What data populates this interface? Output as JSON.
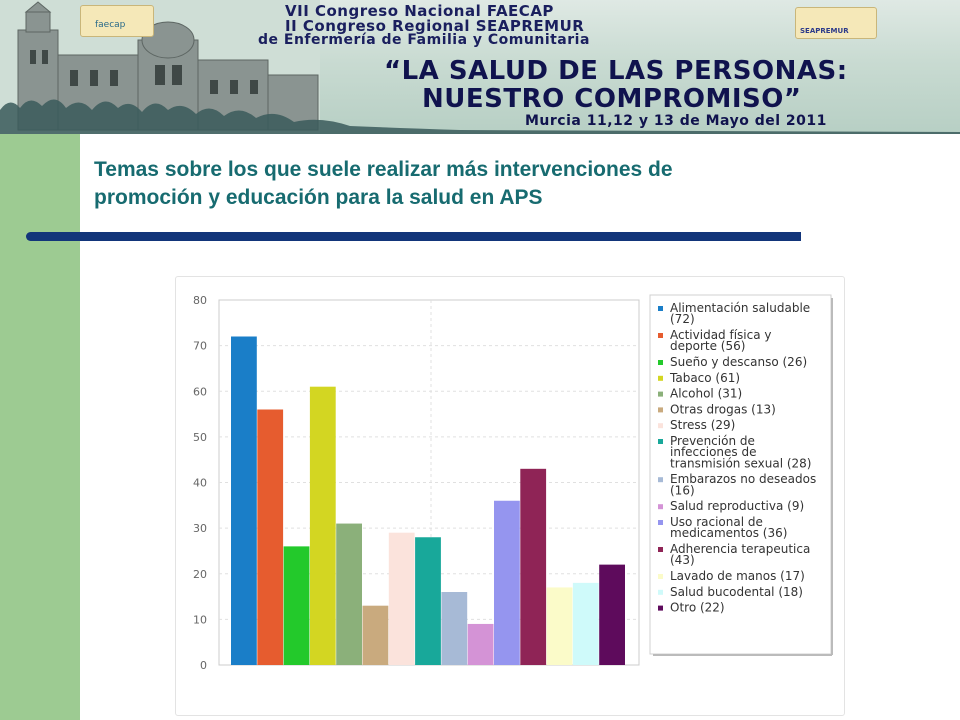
{
  "header": {
    "line1": "VII Congreso Nacional FAECAP",
    "line2": "II Congreso Regional SEAPREMUR",
    "line3": "de Enfermería de Familia y Comunitaria",
    "slogan1": "“LA SALUD DE LAS PERSONAS:",
    "slogan2": "NUESTRO COMPROMISO”",
    "dates": "Murcia 11,12 y 13 de Mayo del 2011",
    "logo_left": "faecap",
    "logo_right": "SEAPREMUR"
  },
  "slide": {
    "title_line1": "Temas sobre los que suele realizar más intervenciones de",
    "title_line2": "promoción y educación para la salud en APS"
  },
  "chart_data": {
    "type": "bar",
    "title": "",
    "xlabel": "",
    "ylabel": "",
    "ylim": [
      0,
      80
    ],
    "yticks": [
      "0",
      "10",
      "20",
      "30",
      "40",
      "50",
      "60",
      "70",
      "80"
    ],
    "grid": true,
    "legend_position": "right",
    "series": [
      {
        "name": "Alimentación saludable",
        "value": 72,
        "color": "#1a7ec8",
        "legend": [
          "Alimentación saludable",
          "(72)"
        ]
      },
      {
        "name": "Actividad física y deporte",
        "value": 56,
        "color": "#e65c2f",
        "legend": [
          "Actividad física y",
          "deporte (56)"
        ]
      },
      {
        "name": "Sueño y descanso",
        "value": 26,
        "color": "#23c92b",
        "legend": [
          "Sueño y descanso (26)"
        ]
      },
      {
        "name": "Tabaco",
        "value": 61,
        "color": "#d3d622",
        "legend": [
          "Tabaco (61)"
        ]
      },
      {
        "name": "Alcohol",
        "value": 31,
        "color": "#8bb07a",
        "legend": [
          "Alcohol (31)"
        ]
      },
      {
        "name": "Otras drogas",
        "value": 13,
        "color": "#c9aa7e",
        "legend": [
          "Otras drogas (13)"
        ]
      },
      {
        "name": "Stress",
        "value": 29,
        "color": "#fbe3dc",
        "legend": [
          "Stress (29)"
        ]
      },
      {
        "name": "Prevención de infecciones de transmisión sexual",
        "value": 28,
        "color": "#18a89a",
        "legend": [
          "Prevención de",
          "infecciones de",
          "transmisión sexual (28)"
        ]
      },
      {
        "name": "Embarazos no deseados",
        "value": 16,
        "color": "#a7bad6",
        "legend": [
          "Embarazos no deseados",
          "(16)"
        ]
      },
      {
        "name": "Salud reproductiva",
        "value": 9,
        "color": "#d493d6",
        "legend": [
          "Salud reproductiva (9)"
        ]
      },
      {
        "name": "Uso racional de medicamentos",
        "value": 36,
        "color": "#9595ef",
        "legend": [
          "Uso racional de",
          "medicamentos (36)"
        ]
      },
      {
        "name": "Adherencia terapeutica",
        "value": 43,
        "color": "#8f2456",
        "legend": [
          "Adherencia terapeutica",
          "(43)"
        ]
      },
      {
        "name": "Lavado de manos",
        "value": 17,
        "color": "#fbfbc9",
        "legend": [
          "Lavado de manos (17)"
        ]
      },
      {
        "name": "Salud bucodental",
        "value": 18,
        "color": "#cffafa",
        "legend": [
          "Salud bucodental (18)"
        ]
      },
      {
        "name": "Otro",
        "value": 22,
        "color": "#5e0b5c",
        "legend": [
          "Otro (22)"
        ]
      }
    ]
  }
}
